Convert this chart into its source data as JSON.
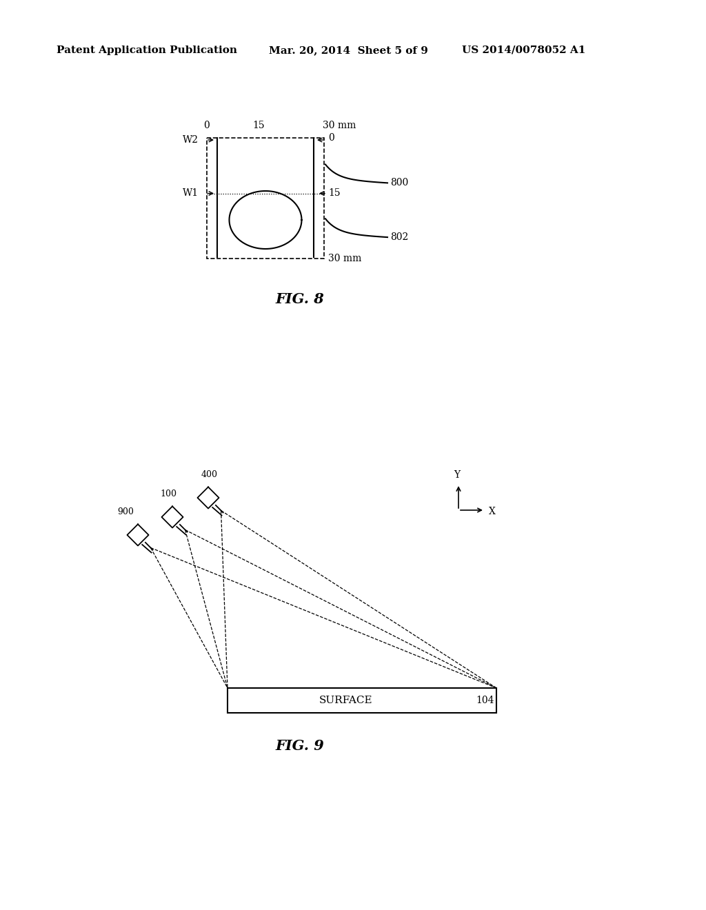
{
  "bg_color": "#ffffff",
  "header_left": "Patent Application Publication",
  "header_mid": "Mar. 20, 2014  Sheet 5 of 9",
  "header_right": "US 2014/0078052 A1",
  "fig8_label": "FIG. 8",
  "fig9_label": "FIG. 9",
  "surface_label": "SURFACE",
  "surface_ref": "104",
  "label_900": "900",
  "label_100": "100",
  "label_400": "400",
  "label_800": "800",
  "label_802": "802",
  "label_W1": "W1",
  "label_W2": "W2"
}
